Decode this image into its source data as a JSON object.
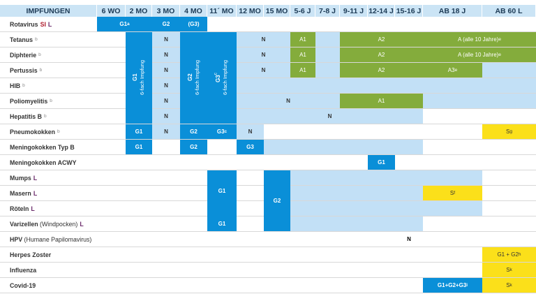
{
  "header": {
    "row_title": "IMPFUNGEN",
    "columns": [
      "6 WO",
      "2 MO",
      "3 MO",
      "4 MO",
      "11´ MO",
      "12 MO",
      "15 MO",
      "5-6 J",
      "7-8 J",
      "9-11 J",
      "12-14 J",
      "15-16 J",
      "AB 18 J",
      "AB 60 L"
    ]
  },
  "rows": [
    {
      "name": "Rotavirus",
      "sup": "",
      "extra": "",
      "marks": [
        {
          "text": "SI",
          "color": "red"
        },
        {
          "text": "L",
          "color": "purple"
        }
      ]
    },
    {
      "name": "Tetanus",
      "sup": "",
      "extra": "",
      "marks": [
        {
          "text": "b",
          "color": "gray"
        }
      ]
    },
    {
      "name": "Diphterie",
      "sup": "",
      "extra": "",
      "marks": [
        {
          "text": "b",
          "color": "gray"
        }
      ]
    },
    {
      "name": "Pertussis",
      "sup": "",
      "extra": "",
      "marks": [
        {
          "text": "b",
          "color": "gray"
        }
      ]
    },
    {
      "name": "HIB",
      "sup": "",
      "extra": "",
      "marks": [
        {
          "text": "b",
          "color": "gray"
        }
      ]
    },
    {
      "name": "Poliomyelitis",
      "sup": "",
      "extra": "",
      "marks": [
        {
          "text": "b",
          "color": "gray"
        }
      ]
    },
    {
      "name": "Hepatitis B",
      "sup": "",
      "extra": "",
      "marks": [
        {
          "text": "b",
          "color": "gray"
        }
      ]
    },
    {
      "name": "Pneumokokken",
      "sup": "",
      "extra": "",
      "marks": [
        {
          "text": "b",
          "color": "gray"
        }
      ]
    },
    {
      "name": "Meningokokken Typ B",
      "sup": "",
      "extra": "",
      "marks": []
    },
    {
      "name": "Meningokokken ACWY",
      "sup": "",
      "extra": "",
      "marks": []
    },
    {
      "name": "Mumps",
      "sup": "",
      "extra": "",
      "marks": [
        {
          "text": "L",
          "color": "purple"
        }
      ]
    },
    {
      "name": "Masern",
      "sup": "",
      "extra": "",
      "marks": [
        {
          "text": "L",
          "color": "purple"
        }
      ]
    },
    {
      "name": "Röteln",
      "sup": "",
      "extra": "",
      "marks": [
        {
          "text": "L",
          "color": "purple"
        }
      ]
    },
    {
      "name": "Varizellen",
      "sup": "",
      "extra": "(Windpocken)",
      "marks": [
        {
          "text": "L",
          "color": "purple"
        }
      ]
    },
    {
      "name": "HPV",
      "sup": "",
      "extra": "(Humane Papilomavirus)",
      "marks": []
    },
    {
      "name": "Herpes Zoster",
      "sup": "",
      "extra": "",
      "marks": []
    },
    {
      "name": "Influenza",
      "sup": "",
      "extra": "",
      "marks": []
    },
    {
      "name": "Covid-19",
      "sup": "",
      "extra": "",
      "marks": []
    }
  ],
  "cells": [
    {
      "r": 0,
      "c": 0,
      "rs": 1,
      "cs": 2,
      "t": "dark",
      "label": "G1",
      "sup": "a"
    },
    {
      "r": 0,
      "c": 2,
      "rs": 1,
      "cs": 1,
      "t": "dark",
      "label": "G2",
      "sup": ""
    },
    {
      "r": 0,
      "c": 3,
      "rs": 1,
      "cs": 1,
      "t": "dark",
      "label": "(G3)",
      "sup": ""
    },
    {
      "r": 1,
      "c": 1,
      "rs": 6,
      "cs": 1,
      "t": "dark",
      "label": "G1",
      "sub": "6-fach Impfung",
      "vertical": true
    },
    {
      "r": 1,
      "c": 3,
      "rs": 6,
      "cs": 1,
      "t": "dark",
      "label": "G2",
      "sub": "6-fach Impfung",
      "vertical": true
    },
    {
      "r": 1,
      "c": 4,
      "rs": 6,
      "cs": 1,
      "t": "dark",
      "label": "G3",
      "sup": "c",
      "sub": "6-fach Impfung",
      "vertical": true
    },
    {
      "r": 1,
      "c": 2,
      "rs": 1,
      "cs": 1,
      "t": "light",
      "label": "N"
    },
    {
      "r": 2,
      "c": 2,
      "rs": 1,
      "cs": 1,
      "t": "light",
      "label": "N"
    },
    {
      "r": 3,
      "c": 2,
      "rs": 1,
      "cs": 1,
      "t": "light",
      "label": "N"
    },
    {
      "r": 4,
      "c": 2,
      "rs": 1,
      "cs": 1,
      "t": "light",
      "label": "N"
    },
    {
      "r": 5,
      "c": 2,
      "rs": 1,
      "cs": 1,
      "t": "light",
      "label": "N"
    },
    {
      "r": 6,
      "c": 2,
      "rs": 1,
      "cs": 1,
      "t": "light",
      "label": "N"
    },
    {
      "r": 1,
      "c": 5,
      "rs": 1,
      "cs": 2,
      "t": "light",
      "label": "N"
    },
    {
      "r": 1,
      "c": 7,
      "rs": 1,
      "cs": 1,
      "t": "green",
      "label": "A1"
    },
    {
      "r": 1,
      "c": 8,
      "rs": 1,
      "cs": 1,
      "t": "light",
      "label": ""
    },
    {
      "r": 1,
      "c": 9,
      "rs": 1,
      "cs": 3,
      "t": "green",
      "label": "A2"
    },
    {
      "r": 1,
      "c": 12,
      "rs": 1,
      "cs": 2,
      "t": "green",
      "label": "A (alle 10 Jahre)",
      "sup": "e"
    },
    {
      "r": 2,
      "c": 5,
      "rs": 1,
      "cs": 2,
      "t": "light",
      "label": "N"
    },
    {
      "r": 2,
      "c": 7,
      "rs": 1,
      "cs": 1,
      "t": "green",
      "label": "A1"
    },
    {
      "r": 2,
      "c": 8,
      "rs": 1,
      "cs": 1,
      "t": "light",
      "label": ""
    },
    {
      "r": 2,
      "c": 9,
      "rs": 1,
      "cs": 3,
      "t": "green",
      "label": "A2"
    },
    {
      "r": 2,
      "c": 12,
      "rs": 1,
      "cs": 2,
      "t": "green",
      "label": "A (alle 10 Jahre)",
      "sup": "e"
    },
    {
      "r": 3,
      "c": 5,
      "rs": 1,
      "cs": 2,
      "t": "light",
      "label": "N"
    },
    {
      "r": 3,
      "c": 7,
      "rs": 1,
      "cs": 1,
      "t": "green",
      "label": "A1"
    },
    {
      "r": 3,
      "c": 8,
      "rs": 1,
      "cs": 1,
      "t": "light",
      "label": ""
    },
    {
      "r": 3,
      "c": 9,
      "rs": 1,
      "cs": 3,
      "t": "green",
      "label": "A2"
    },
    {
      "r": 3,
      "c": 12,
      "rs": 1,
      "cs": 1,
      "t": "green",
      "label": "A3",
      "sup": "e"
    },
    {
      "r": 3,
      "c": 13,
      "rs": 1,
      "cs": 1,
      "t": "light",
      "label": ""
    },
    {
      "r": 4,
      "c": 5,
      "rs": 1,
      "cs": 9,
      "t": "light",
      "label": ""
    },
    {
      "r": 5,
      "c": 5,
      "rs": 1,
      "cs": 4,
      "t": "light",
      "label": "N"
    },
    {
      "r": 5,
      "c": 9,
      "rs": 1,
      "cs": 3,
      "t": "green",
      "label": "A1"
    },
    {
      "r": 5,
      "c": 12,
      "rs": 1,
      "cs": 2,
      "t": "light",
      "label": ""
    },
    {
      "r": 6,
      "c": 5,
      "rs": 1,
      "cs": 7,
      "t": "light",
      "label": "N"
    },
    {
      "r": 7,
      "c": 1,
      "rs": 1,
      "cs": 1,
      "t": "dark",
      "label": "G1"
    },
    {
      "r": 7,
      "c": 2,
      "rs": 1,
      "cs": 1,
      "t": "light",
      "label": "N"
    },
    {
      "r": 7,
      "c": 3,
      "rs": 1,
      "cs": 1,
      "t": "dark",
      "label": "G2"
    },
    {
      "r": 7,
      "c": 4,
      "rs": 1,
      "cs": 1,
      "t": "dark",
      "label": "G3",
      "sup": "c"
    },
    {
      "r": 7,
      "c": 5,
      "rs": 1,
      "cs": 1,
      "t": "light",
      "label": "N"
    },
    {
      "r": 7,
      "c": 13,
      "rs": 1,
      "cs": 1,
      "t": "yellow",
      "label": "S",
      "sup": "g"
    },
    {
      "r": 8,
      "c": 1,
      "rs": 1,
      "cs": 1,
      "t": "dark",
      "label": "G1"
    },
    {
      "r": 8,
      "c": 3,
      "rs": 1,
      "cs": 1,
      "t": "dark",
      "label": "G2"
    },
    {
      "r": 8,
      "c": 5,
      "rs": 1,
      "cs": 1,
      "t": "dark",
      "label": "G3"
    },
    {
      "r": 8,
      "c": 6,
      "rs": 1,
      "cs": 6,
      "t": "light",
      "label": ""
    },
    {
      "r": 9,
      "c": 10,
      "rs": 1,
      "cs": 1,
      "t": "dark",
      "label": "G1"
    },
    {
      "r": 10,
      "c": 4,
      "rs": 4,
      "cs": 1,
      "t": "dark",
      "label": "G1"
    },
    {
      "r": 13,
      "c": 4,
      "rs": 1,
      "cs": 1,
      "t": "dark",
      "label": "G1",
      "overlay": true
    },
    {
      "r": 10,
      "c": 6,
      "rs": 4,
      "cs": 1,
      "t": "dark",
      "label": "G2"
    },
    {
      "r": 10,
      "c": 7,
      "rs": 1,
      "cs": 6,
      "t": "light",
      "label": ""
    },
    {
      "r": 11,
      "c": 7,
      "rs": 1,
      "cs": 5,
      "t": "light",
      "label": ""
    },
    {
      "r": 11,
      "c": 12,
      "rs": 1,
      "cs": 1,
      "t": "yellow",
      "label": "S",
      "sup": "f"
    },
    {
      "r": 12,
      "c": 7,
      "rs": 1,
      "cs": 6,
      "t": "light",
      "label": ""
    },
    {
      "r": 13,
      "c": 7,
      "rs": 1,
      "cs": 5,
      "t": "light",
      "label": ""
    },
    {
      "r": 14,
      "c": 11,
      "rs": 1,
      "cs": 1,
      "t": "none",
      "label": "N"
    },
    {
      "r": 15,
      "c": 13,
      "rs": 1,
      "cs": 1,
      "t": "yellow",
      "label": "G1 + G2",
      "sup": "h"
    },
    {
      "r": 16,
      "c": 13,
      "rs": 1,
      "cs": 1,
      "t": "yellow",
      "label": "S",
      "sup": "k"
    },
    {
      "r": 17,
      "c": 12,
      "rs": 1,
      "cs": 1,
      "t": "dark",
      "label": "G1+G2+G3",
      "sup": "i"
    },
    {
      "r": 17,
      "c": 13,
      "rs": 1,
      "cs": 1,
      "t": "yellow",
      "label": "S",
      "sup": "k"
    }
  ]
}
